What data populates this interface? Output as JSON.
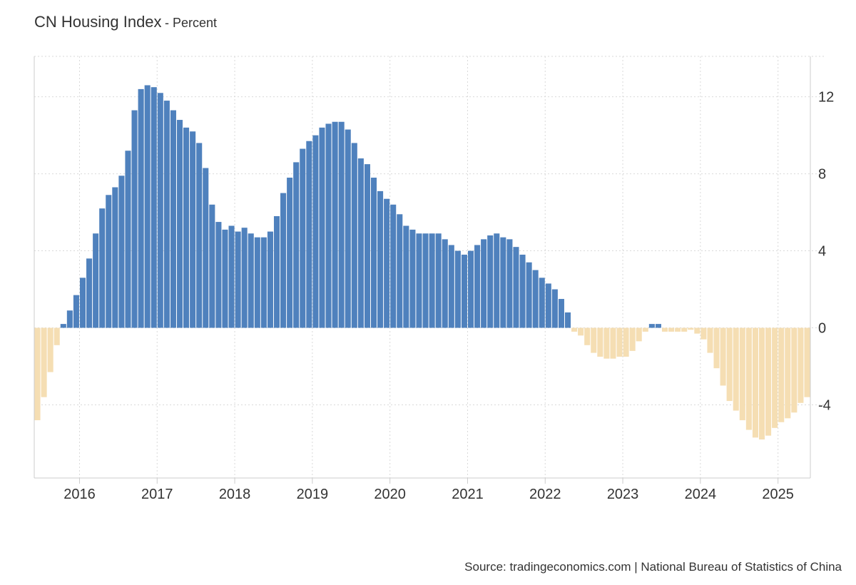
{
  "header": {
    "title": "CN Housing Index",
    "subtitle": "- Percent"
  },
  "footer": {
    "source": "Source: tradingeconomics.com | National Bureau of Statistics of China"
  },
  "colors": {
    "positive": "#4f81bd",
    "negative": "#f5deb3",
    "grid": "#d9d9d9",
    "axis": "#cccccc",
    "text": "#333333"
  },
  "chart_data": {
    "type": "bar",
    "title": "CN Housing Index",
    "ylabel": "Percent",
    "ylim": [
      -7.8,
      14.1
    ],
    "yticks": [
      12,
      8,
      4,
      0,
      -4
    ],
    "xticks": [
      "2016",
      "2017",
      "2018",
      "2019",
      "2020",
      "2021",
      "2022",
      "2023",
      "2024",
      "2025"
    ],
    "grid": true,
    "start_month": "2015-06",
    "values": [
      -4.8,
      -3.6,
      -2.3,
      -0.9,
      0.2,
      0.9,
      1.7,
      2.6,
      3.6,
      4.9,
      6.2,
      6.9,
      7.3,
      7.9,
      9.2,
      11.3,
      12.4,
      12.6,
      12.5,
      12.2,
      11.8,
      11.3,
      10.8,
      10.4,
      10.2,
      9.6,
      8.3,
      6.4,
      5.5,
      5.1,
      5.3,
      5.0,
      5.2,
      4.9,
      4.7,
      4.7,
      5.0,
      5.8,
      7.0,
      7.8,
      8.6,
      9.3,
      9.7,
      10.0,
      10.4,
      10.6,
      10.7,
      10.7,
      10.3,
      9.6,
      8.8,
      8.5,
      7.8,
      7.1,
      6.7,
      6.4,
      5.9,
      5.3,
      5.1,
      4.9,
      4.9,
      4.9,
      4.9,
      4.6,
      4.3,
      4.0,
      3.8,
      4.0,
      4.3,
      4.6,
      4.8,
      4.9,
      4.7,
      4.6,
      4.2,
      3.8,
      3.4,
      3.0,
      2.6,
      2.3,
      2.0,
      1.5,
      0.8,
      -0.2,
      -0.4,
      -0.9,
      -1.3,
      -1.5,
      -1.6,
      -1.6,
      -1.5,
      -1.5,
      -1.2,
      -0.7,
      -0.2,
      0.2,
      0.2,
      -0.2,
      -0.2,
      -0.2,
      -0.2,
      -0.1,
      -0.3,
      -0.6,
      -1.3,
      -2.1,
      -3.0,
      -3.8,
      -4.3,
      -4.8,
      -5.3,
      -5.7,
      -5.8,
      -5.6,
      -5.2,
      -4.9,
      -4.7,
      -4.4,
      -3.9,
      -3.6
    ]
  }
}
